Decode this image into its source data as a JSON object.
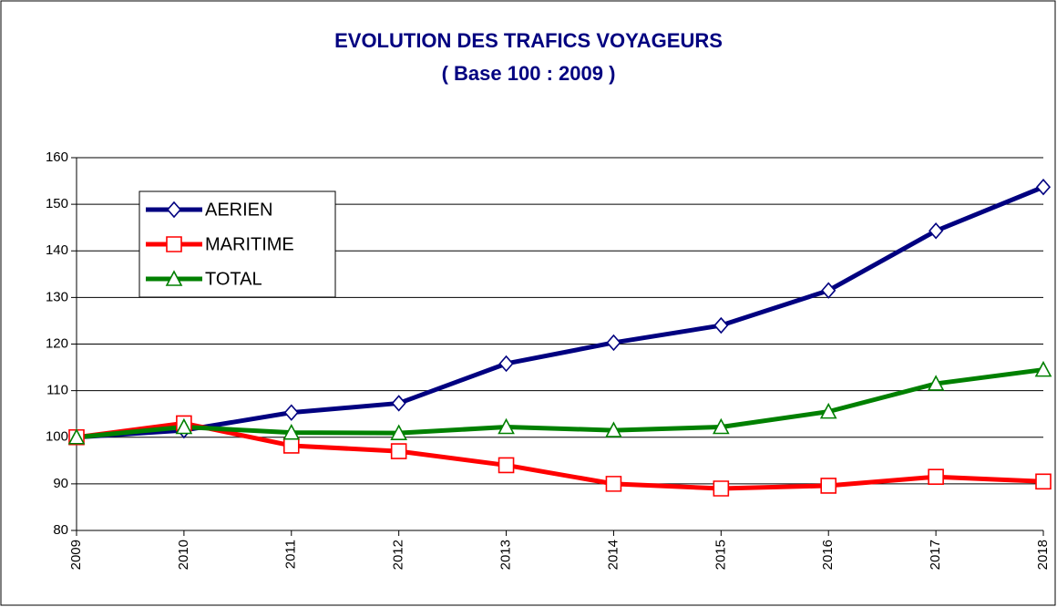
{
  "chart_data": {
    "type": "line",
    "title": "EVOLUTION DES TRAFICS VOYAGEURS",
    "subtitle": "( Base 100 : 2009 )",
    "categories": [
      "2009",
      "2010",
      "2011",
      "2012",
      "2013",
      "2014",
      "2015",
      "2016",
      "2017",
      "2018"
    ],
    "series": [
      {
        "name": "AERIEN",
        "color": "#000080",
        "marker": "diamond",
        "values": [
          100,
          101.5,
          105.3,
          107.3,
          115.8,
          120.3,
          124,
          131.5,
          144.3,
          153.7
        ]
      },
      {
        "name": "MARITIME",
        "color": "#ff0000",
        "marker": "square",
        "values": [
          100,
          103,
          98.2,
          97,
          94,
          90,
          89,
          89.6,
          91.5,
          90.5
        ]
      },
      {
        "name": "TOTAL",
        "color": "#008000",
        "marker": "triangle",
        "values": [
          100,
          102.2,
          101,
          100.9,
          102.2,
          101.5,
          102.2,
          105.5,
          111.5,
          114.5
        ]
      }
    ],
    "ylim": [
      80,
      160
    ],
    "yticks": [
      80,
      90,
      100,
      110,
      120,
      130,
      140,
      150,
      160
    ],
    "grid": true,
    "legend": "upper left"
  }
}
